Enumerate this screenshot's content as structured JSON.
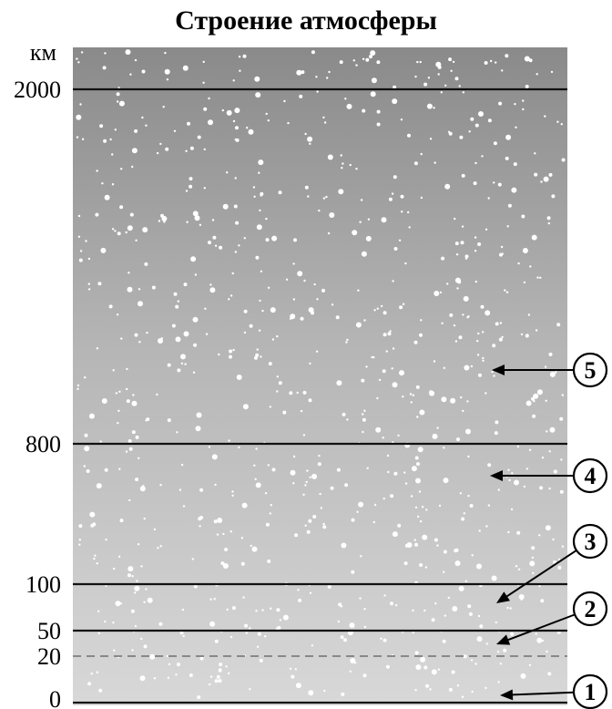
{
  "title": "Строение атмосферы",
  "axis": {
    "unit": "км",
    "ticks": [
      {
        "value": 2000,
        "label": "2000",
        "line": "solid"
      },
      {
        "value": 800,
        "label": "800",
        "line": "solid"
      },
      {
        "value": 100,
        "label": "100",
        "line": "solid"
      },
      {
        "value": 50,
        "label": "50",
        "line": "solid"
      },
      {
        "value": 20,
        "label": "20",
        "line": "dashed"
      },
      {
        "value": 0,
        "label": "0",
        "line": "solid"
      }
    ]
  },
  "layers": [
    {
      "number": "1"
    },
    {
      "number": "2"
    },
    {
      "number": "3"
    },
    {
      "number": "4"
    },
    {
      "number": "5"
    }
  ],
  "colors": {
    "top": "#8a8a8a",
    "bottom": "#d8d8d8",
    "line": "#111111",
    "dashed": "#888888",
    "stars": "#ffffff"
  }
}
